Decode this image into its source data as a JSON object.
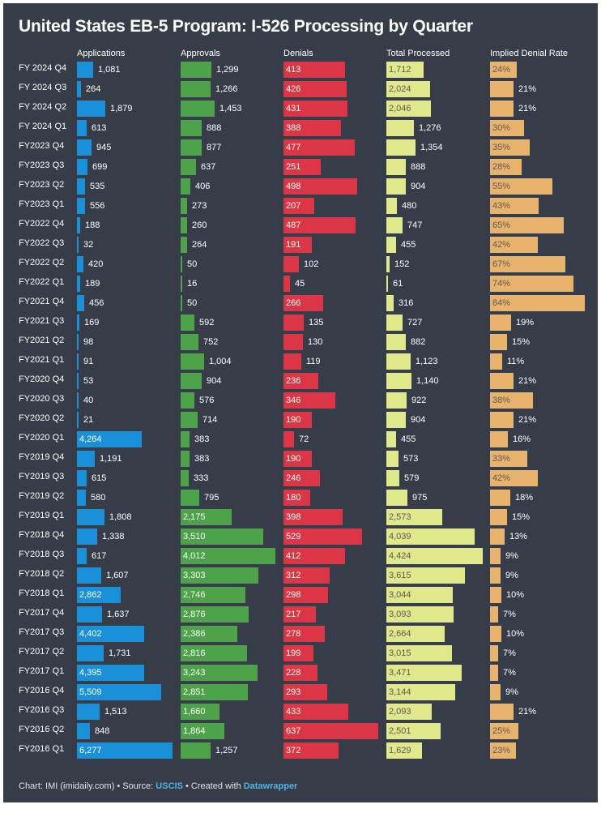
{
  "title": "United States EB-5 Program: I-526 Processing by Quarter",
  "footer": {
    "prefix": "Chart: IMI (imidaily.com) • Source: ",
    "source_link": "USCIS",
    "middle": " • Created with ",
    "tool_link": "Datawrapper"
  },
  "colors": {
    "background": "#363d48",
    "applications": "#1a90db",
    "approvals": "#4ea24a",
    "denials": "#dc3545",
    "total_processed": "#dfe88a",
    "denial_rate": "#e8b36c"
  },
  "chart_data": {
    "type": "bar",
    "title": "United States EB-5 Program: I-526 Processing by Quarter",
    "orientation": "horizontal",
    "categories": [
      "FY 2024 Q4",
      "FY 2024 Q3",
      "FY 2024 Q2",
      "FY 2024 Q1",
      "FY2023 Q4",
      "FY2023 Q3",
      "FY2023 Q2",
      "FY2023 Q1",
      "FY2022 Q4",
      "FY2022 Q3",
      "FY2022 Q2",
      "FY2022 Q1",
      "FY2021 Q4",
      "FY2021 Q3",
      "FY2021 Q2",
      "FY2021 Q1",
      "FY2020 Q4",
      "FY2020 Q3",
      "FY2020 Q2",
      "FY2020 Q1",
      "FY2019 Q4",
      "FY2019 Q3",
      "FY2019 Q2",
      "FY2019 Q1",
      "FY2018 Q4",
      "FY2018 Q3",
      "FY2018 Q2",
      "FY2018 Q1",
      "FY2017 Q4",
      "FY2017 Q3",
      "FY2017 Q2",
      "FY2017 Q1",
      "FY2016 Q4",
      "FY2016 Q3",
      "FY2016 Q2",
      "FY2016 Q1"
    ],
    "series": [
      {
        "name": "Applications",
        "key": "applications",
        "max": 6277,
        "values": [
          1081,
          264,
          1879,
          613,
          945,
          699,
          535,
          556,
          188,
          32,
          420,
          189,
          456,
          169,
          98,
          91,
          53,
          40,
          21,
          4264,
          1191,
          615,
          580,
          1808,
          1338,
          617,
          1607,
          2862,
          1637,
          4402,
          1731,
          4395,
          5509,
          1513,
          848,
          6277
        ],
        "labels": [
          "1,081",
          "264",
          "1,879",
          "613",
          "945",
          "699",
          "535",
          "556",
          "188",
          "32",
          "420",
          "189",
          "456",
          "169",
          "98",
          "91",
          "53",
          "40",
          "21",
          "4,264",
          "1,191",
          "615",
          "580",
          "1,808",
          "1,338",
          "617",
          "1,607",
          "2,862",
          "1,637",
          "4,402",
          "1,731",
          "4,395",
          "5,509",
          "1,513",
          "848",
          "6,277"
        ]
      },
      {
        "name": "Approvals",
        "key": "approvals",
        "max": 4012,
        "values": [
          1299,
          1266,
          1453,
          888,
          877,
          637,
          406,
          273,
          260,
          264,
          50,
          16,
          50,
          592,
          752,
          1004,
          904,
          576,
          714,
          383,
          383,
          333,
          795,
          2175,
          3510,
          4012,
          3303,
          2746,
          2876,
          2386,
          2816,
          3243,
          2851,
          1660,
          1864,
          1257
        ],
        "labels": [
          "1,299",
          "1,266",
          "1,453",
          "888",
          "877",
          "637",
          "406",
          "273",
          "260",
          "264",
          "50",
          "16",
          "50",
          "592",
          "752",
          "1,004",
          "904",
          "576",
          "714",
          "383",
          "383",
          "333",
          "795",
          "2,175",
          "3,510",
          "4,012",
          "3,303",
          "2,746",
          "2,876",
          "2,386",
          "2,816",
          "3,243",
          "2,851",
          "1,660",
          "1,864",
          "1,257"
        ]
      },
      {
        "name": "Denials",
        "key": "denials",
        "max": 637,
        "values": [
          413,
          426,
          431,
          388,
          477,
          251,
          498,
          207,
          487,
          191,
          102,
          45,
          266,
          135,
          130,
          119,
          236,
          346,
          190,
          72,
          190,
          246,
          180,
          398,
          529,
          412,
          312,
          298,
          217,
          278,
          199,
          228,
          293,
          433,
          637,
          372
        ],
        "labels": [
          "413",
          "426",
          "431",
          "388",
          "477",
          "251",
          "498",
          "207",
          "487",
          "191",
          "102",
          "45",
          "266",
          "135",
          "130",
          "119",
          "236",
          "346",
          "190",
          "72",
          "190",
          "246",
          "180",
          "398",
          "529",
          "412",
          "312",
          "298",
          "217",
          "278",
          "199",
          "228",
          "293",
          "433",
          "637",
          "372"
        ]
      },
      {
        "name": "Total Processed",
        "key": "total_processed",
        "max": 4424,
        "values": [
          1712,
          2024,
          2046,
          1276,
          1354,
          888,
          904,
          480,
          747,
          455,
          152,
          61,
          316,
          727,
          882,
          1123,
          1140,
          922,
          904,
          455,
          573,
          579,
          975,
          2573,
          4039,
          4424,
          3615,
          3044,
          3093,
          2664,
          3015,
          3471,
          3144,
          2093,
          2501,
          1629
        ],
        "labels": [
          "1,712",
          "2,024",
          "2,046",
          "1,276",
          "1,354",
          "888",
          "904",
          "480",
          "747",
          "455",
          "152",
          "61",
          "316",
          "727",
          "882",
          "1,123",
          "1,140",
          "922",
          "904",
          "455",
          "573",
          "579",
          "975",
          "2,573",
          "4,039",
          "4,424",
          "3,615",
          "3,044",
          "3,093",
          "2,664",
          "3,015",
          "3,471",
          "3,144",
          "2,093",
          "2,501",
          "1,629"
        ]
      },
      {
        "name": "Implied Denial Rate",
        "key": "denial_rate",
        "max": 84,
        "unit": "%",
        "values": [
          24,
          21,
          21,
          30,
          35,
          28,
          55,
          43,
          65,
          42,
          67,
          74,
          84,
          19,
          15,
          11,
          21,
          38,
          21,
          16,
          33,
          42,
          18,
          15,
          13,
          9,
          9,
          10,
          7,
          10,
          7,
          7,
          9,
          21,
          25,
          23
        ],
        "labels": [
          "24%",
          "21%",
          "21%",
          "30%",
          "35%",
          "28%",
          "55%",
          "43%",
          "65%",
          "42%",
          "67%",
          "74%",
          "84%",
          "19%",
          "15%",
          "11%",
          "21%",
          "38%",
          "21%",
          "16%",
          "33%",
          "42%",
          "18%",
          "15%",
          "13%",
          "9%",
          "9%",
          "10%",
          "7%",
          "10%",
          "7%",
          "7%",
          "9%",
          "21%",
          "25%",
          "23%"
        ]
      }
    ]
  }
}
